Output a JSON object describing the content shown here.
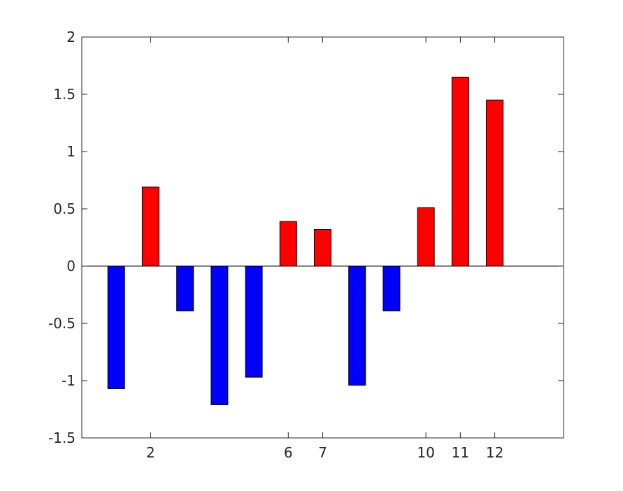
{
  "chart_data": {
    "type": "bar",
    "x": [
      1,
      2,
      3,
      4,
      5,
      6,
      7,
      8,
      9,
      10,
      11,
      12
    ],
    "values": [
      -1.07,
      0.69,
      -0.39,
      -1.21,
      -0.97,
      0.39,
      0.32,
      -1.04,
      -0.39,
      0.51,
      1.65,
      1.45
    ],
    "xlim": [
      0,
      14
    ],
    "ylim": [
      -1.5,
      2
    ],
    "x_ticks": [
      "2",
      "6",
      "7",
      "10",
      "11",
      "12"
    ],
    "x_tick_values": [
      2,
      6,
      7,
      10,
      11,
      12
    ],
    "y_ticks": [
      "-1.5",
      "-1",
      "-0.5",
      "0",
      "0.5",
      "1",
      "1.5",
      "2"
    ],
    "y_tick_values": [
      -1.5,
      -1,
      -0.5,
      0,
      0.5,
      1,
      1.5,
      2
    ],
    "title": "",
    "xlabel": "",
    "ylabel": "",
    "grid": false,
    "colors": {
      "positive": "#ff0000",
      "negative": "#0000ff",
      "axis": "#262626"
    }
  }
}
